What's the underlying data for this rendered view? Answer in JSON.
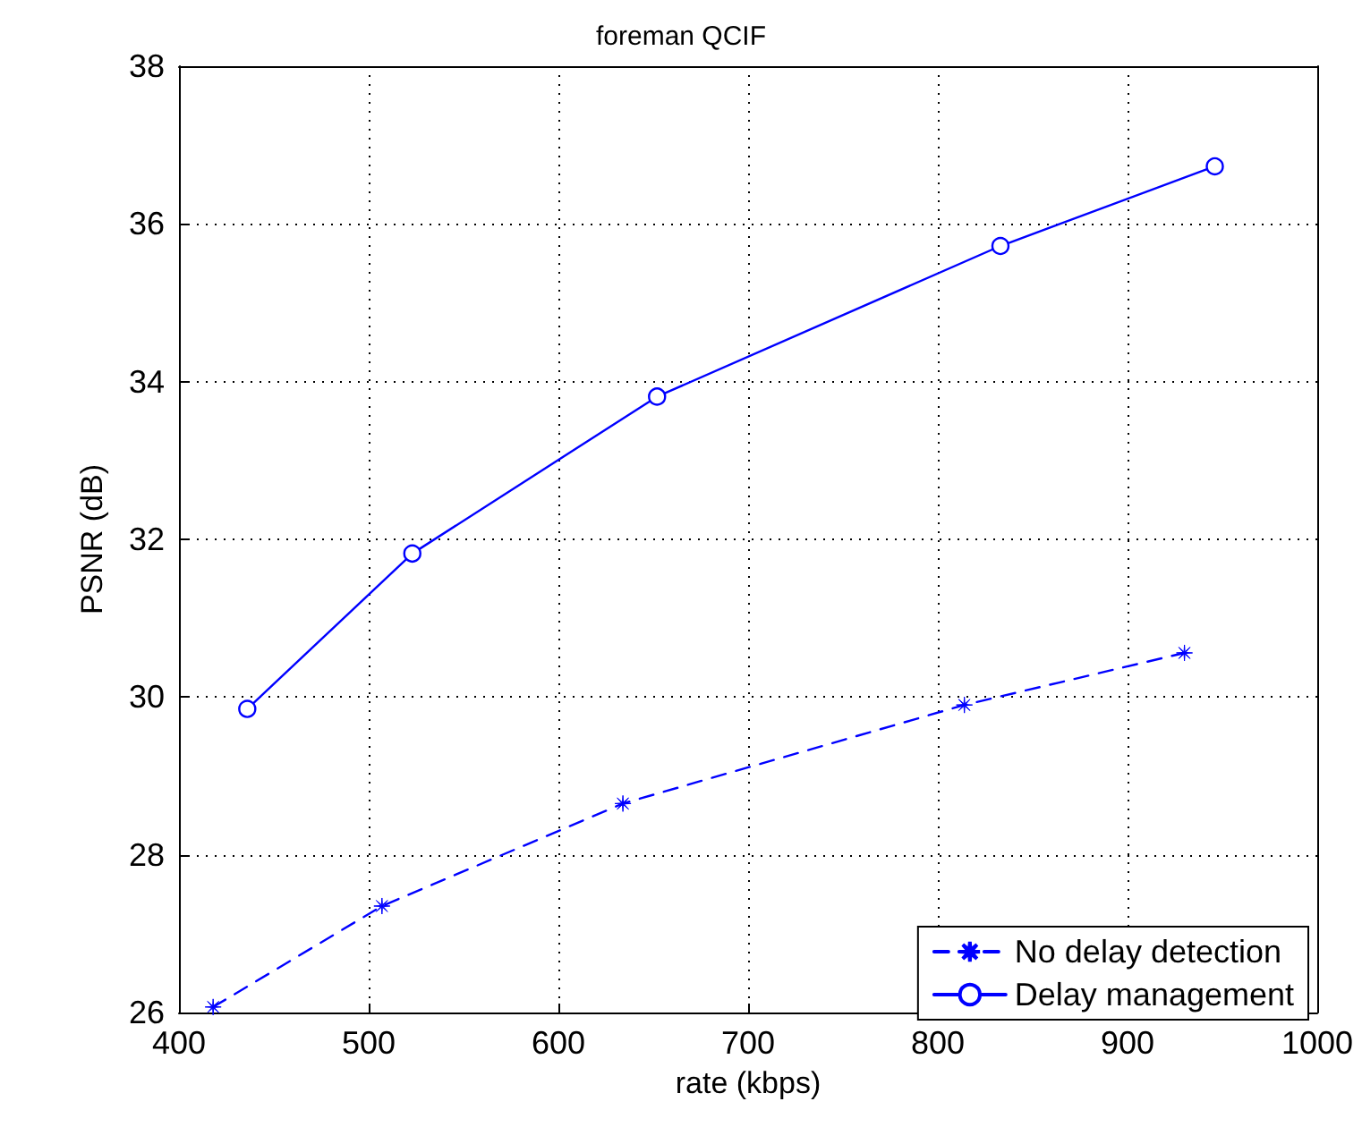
{
  "chart_data": {
    "type": "line",
    "title": "foreman QCIF",
    "xlabel": "rate (kbps)",
    "ylabel": "PSNR (dB)",
    "series": [
      {
        "name": "No delay detection",
        "color": "#0000ff",
        "marker": "star",
        "line_style": "dashed",
        "x": [
          418,
          507,
          634,
          814,
          930
        ],
        "values": [
          26.07,
          27.35,
          28.65,
          29.9,
          30.56
        ]
      },
      {
        "name": "Delay management",
        "color": "#0000ff",
        "marker": "circle",
        "line_style": "solid",
        "x": [
          436,
          523,
          652,
          833,
          946
        ],
        "values": [
          29.85,
          31.82,
          33.81,
          35.72,
          36.73
        ]
      }
    ],
    "xlim": [
      400,
      1000
    ],
    "xticks": [
      400,
      500,
      600,
      700,
      800,
      900,
      1000
    ],
    "ylim": [
      26,
      38
    ],
    "yticks": [
      26,
      28,
      30,
      32,
      34,
      36,
      38
    ],
    "grid": true,
    "legend": "bottom right"
  }
}
